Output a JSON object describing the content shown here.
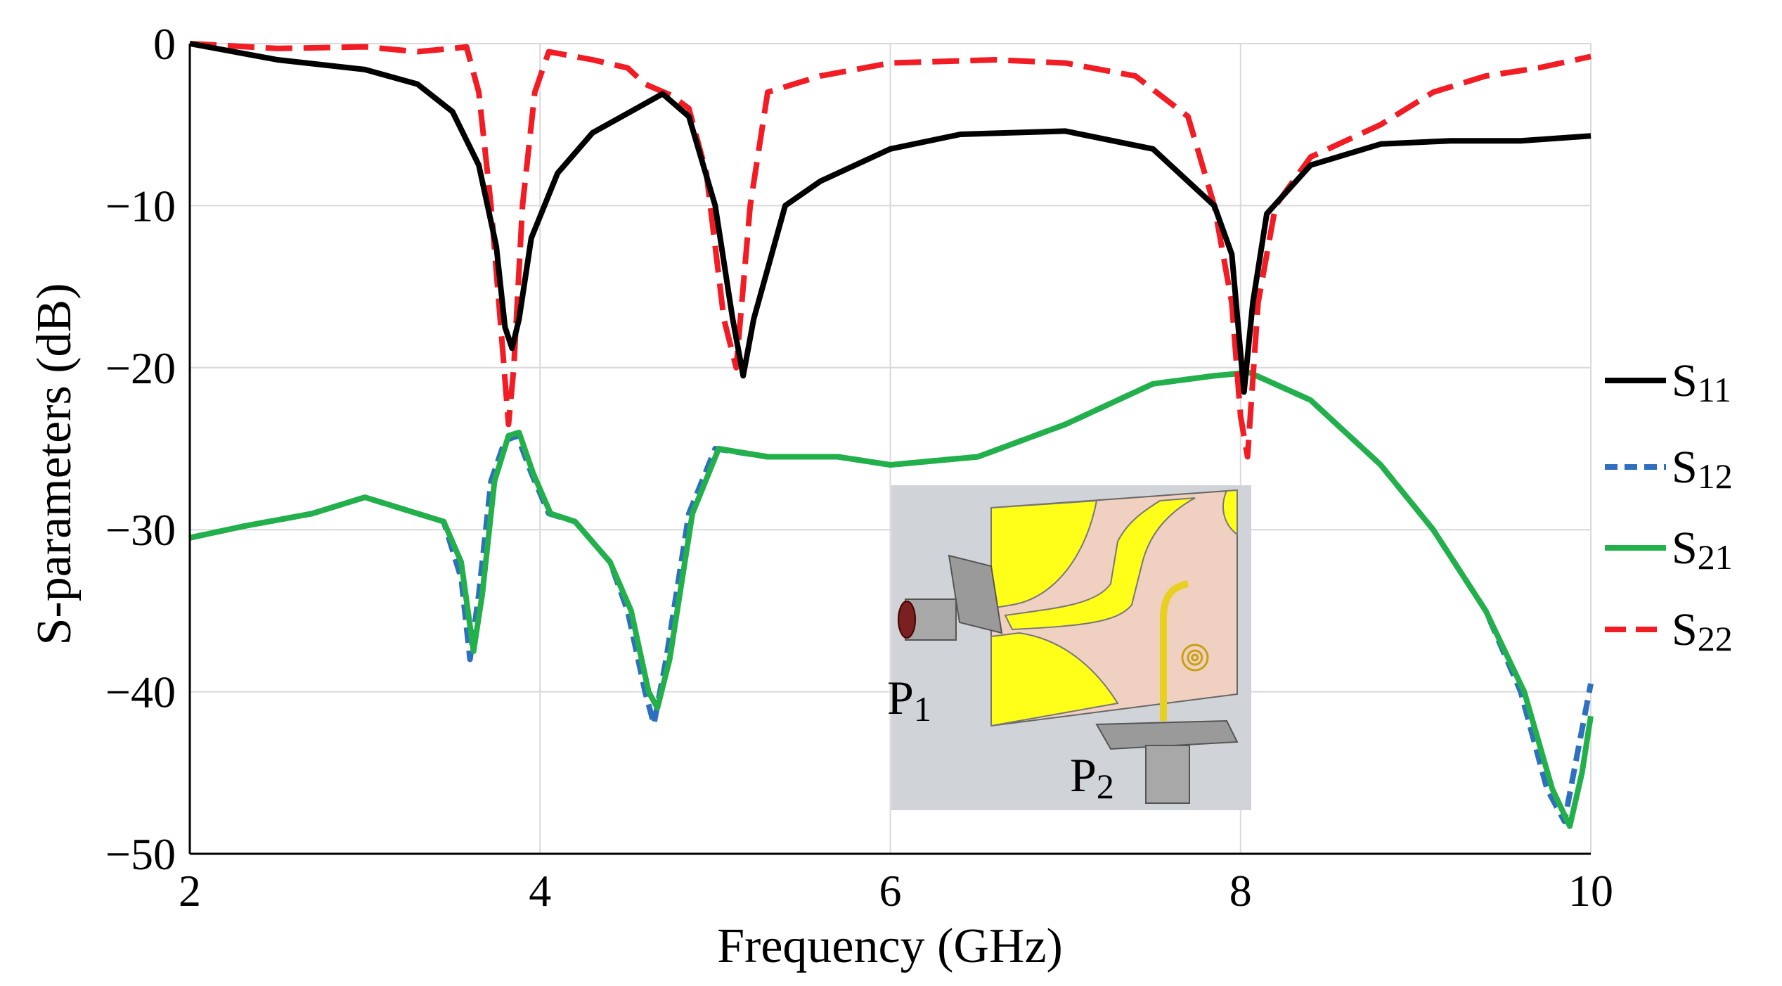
{
  "chart_data": {
    "type": "line",
    "title": "",
    "xlabel": "Frequency (GHz)",
    "ylabel": "S-parameters (dB)",
    "xlim": [
      2,
      10
    ],
    "ylim": [
      -50,
      0
    ],
    "xticks": [
      "2",
      "4",
      "6",
      "8",
      "10"
    ],
    "yticks": [
      "0",
      "−10",
      "−20",
      "−30",
      "−40",
      "−50"
    ],
    "grid": true,
    "legend_position": "right",
    "series": [
      {
        "name": "S11",
        "legend_main": "S",
        "legend_sub": "11",
        "color": "#000000",
        "style": "solid",
        "x": [
          2.0,
          2.5,
          3.0,
          3.3,
          3.5,
          3.65,
          3.75,
          3.8,
          3.84,
          3.88,
          3.95,
          4.1,
          4.3,
          4.5,
          4.7,
          4.85,
          5.0,
          5.1,
          5.16,
          5.22,
          5.4,
          5.6,
          6.0,
          6.4,
          7.0,
          7.5,
          7.85,
          7.95,
          8.02,
          8.07,
          8.15,
          8.4,
          8.8,
          9.2,
          9.6,
          10.0
        ],
        "y": [
          0,
          -1,
          -1.6,
          -2.5,
          -4.2,
          -7.5,
          -12.5,
          -17.5,
          -18.8,
          -17,
          -12,
          -8,
          -5.5,
          -4.3,
          -3.1,
          -4.5,
          -10,
          -17,
          -20.5,
          -17,
          -10,
          -8.5,
          -6.5,
          -5.6,
          -5.4,
          -6.5,
          -10,
          -13,
          -21.5,
          -16,
          -10.5,
          -7.5,
          -6.2,
          -6,
          -6,
          -5.7
        ]
      },
      {
        "name": "S12",
        "legend_main": "S",
        "legend_sub": "12",
        "color": "#2F6FC0",
        "style": "short-dash",
        "x": [
          2.0,
          2.3,
          2.7,
          3.0,
          3.3,
          3.45,
          3.55,
          3.6,
          3.65,
          3.72,
          3.8,
          3.87,
          3.95,
          4.05,
          4.2,
          4.4,
          4.5,
          4.6,
          4.65,
          4.72,
          4.85,
          5.0,
          5.3,
          5.7,
          6.0,
          6.5,
          7.0,
          7.5,
          7.85,
          8.05,
          8.4,
          8.8,
          9.1,
          9.4,
          9.6,
          9.75,
          9.85,
          9.92,
          10.0
        ],
        "y": [
          -30.5,
          -29.8,
          -29,
          -28,
          -29,
          -29.5,
          -33,
          -38,
          -34,
          -27,
          -24.5,
          -24.2,
          -26.5,
          -29,
          -29.5,
          -32,
          -35,
          -40,
          -42,
          -38,
          -29,
          -25,
          -25.5,
          -25.5,
          -26,
          -25.5,
          -23.5,
          -21,
          -20.5,
          -20.3,
          -22,
          -26,
          -30,
          -35,
          -40,
          -46,
          -48,
          -44,
          -39.5
        ]
      },
      {
        "name": "S21",
        "legend_main": "S",
        "legend_sub": "21",
        "color": "#22B04B",
        "style": "solid",
        "x": [
          2.0,
          2.3,
          2.7,
          3.0,
          3.3,
          3.45,
          3.55,
          3.62,
          3.67,
          3.74,
          3.82,
          3.88,
          3.96,
          4.06,
          4.2,
          4.4,
          4.52,
          4.62,
          4.67,
          4.74,
          4.87,
          5.02,
          5.3,
          5.7,
          6.0,
          6.5,
          7.0,
          7.5,
          7.85,
          8.05,
          8.4,
          8.8,
          9.1,
          9.4,
          9.62,
          9.78,
          9.88,
          9.95,
          10.0
        ],
        "y": [
          -30.5,
          -29.8,
          -29,
          -28,
          -29,
          -29.5,
          -32,
          -37.5,
          -34,
          -27,
          -24.2,
          -24,
          -26.5,
          -29,
          -29.5,
          -32,
          -35,
          -40,
          -41,
          -38,
          -29,
          -25,
          -25.5,
          -25.5,
          -26,
          -25.5,
          -23.5,
          -21,
          -20.5,
          -20.3,
          -22,
          -26,
          -30,
          -35,
          -40,
          -46,
          -48.3,
          -45,
          -41.5
        ]
      },
      {
        "name": "S22",
        "legend_main": "S",
        "legend_sub": "22",
        "color": "#F21C24",
        "style": "long-dash",
        "x": [
          2.0,
          2.5,
          3.0,
          3.3,
          3.5,
          3.58,
          3.65,
          3.72,
          3.78,
          3.82,
          3.85,
          3.9,
          3.97,
          4.05,
          4.3,
          4.5,
          4.6,
          4.75,
          4.85,
          4.95,
          5.05,
          5.12,
          5.2,
          5.3,
          5.6,
          6.0,
          6.6,
          7.0,
          7.4,
          7.7,
          7.85,
          7.95,
          8.0,
          8.04,
          8.1,
          8.2,
          8.4,
          8.8,
          9.1,
          9.4,
          9.7,
          10.0
        ],
        "y": [
          0,
          -0.3,
          -0.2,
          -0.5,
          -0.3,
          -0.2,
          -3,
          -10,
          -18,
          -23.5,
          -20,
          -10,
          -3,
          -0.5,
          -1,
          -1.5,
          -2.5,
          -3.2,
          -4,
          -8,
          -17,
          -20,
          -10,
          -3,
          -2,
          -1.2,
          -1,
          -1.2,
          -2,
          -4.5,
          -10,
          -16,
          -23,
          -25.5,
          -16,
          -10,
          -7,
          -5,
          -3,
          -2,
          -1.5,
          -0.8
        ]
      }
    ]
  },
  "inset": {
    "port1_main": "P",
    "port1_sub": "1",
    "port2_main": "P",
    "port2_sub": "2"
  }
}
